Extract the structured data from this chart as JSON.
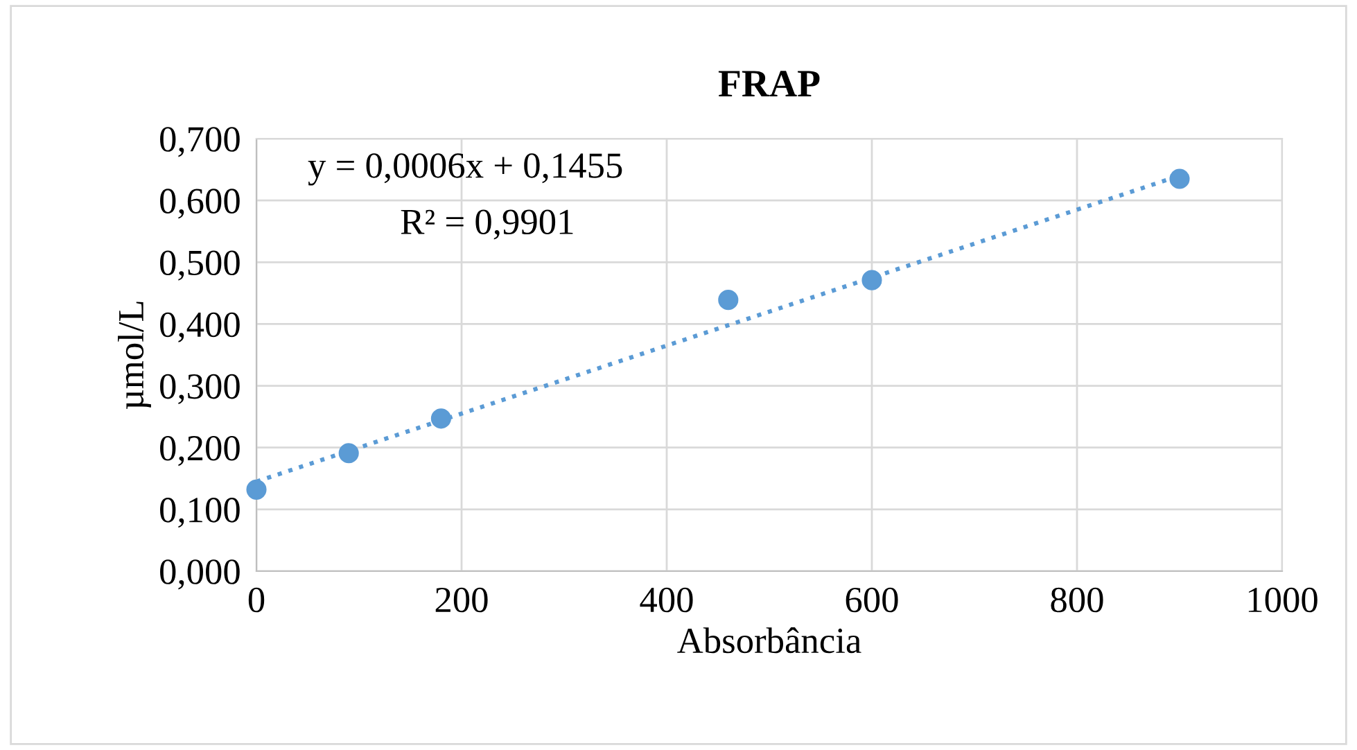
{
  "chart_data": {
    "type": "scatter",
    "title": "FRAP",
    "xlabel": "Absorbância",
    "ylabel": "µmol/L",
    "x": [
      0,
      90,
      180,
      460,
      600,
      900
    ],
    "series": [
      {
        "color": "#5b9bd5",
        "values": [
          0.132,
          0.191,
          0.247,
          0.439,
          0.471,
          0.635
        ],
        "marker": "circle"
      },
      {
        "type": "line",
        "x": [
          0,
          900
        ],
        "values": [
          0.145,
          0.64
        ],
        "color": "#5b9bd5",
        "line_style": "dotted",
        "marker": "none"
      }
    ],
    "annotations": [
      "y = 0,0006x + 0,1455",
      "R² = 0,9901"
    ],
    "xlim": [
      0,
      1000
    ],
    "xticks": [
      0,
      200,
      400,
      600,
      800,
      1000
    ],
    "ylim": [
      0,
      0.7
    ],
    "yticks": [
      {
        "value": 0,
        "label": "0,000"
      },
      {
        "value": 0.1,
        "label": "0,100"
      },
      {
        "value": 0.2,
        "label": "0,200"
      },
      {
        "value": 0.3,
        "label": "0,300"
      },
      {
        "value": 0.4,
        "label": "0,400"
      },
      {
        "value": 0.5,
        "label": "0,500"
      },
      {
        "value": 0.6,
        "label": "0,600"
      },
      {
        "value": 0.7,
        "label": "0,700"
      }
    ],
    "grid": true,
    "legend": false
  }
}
